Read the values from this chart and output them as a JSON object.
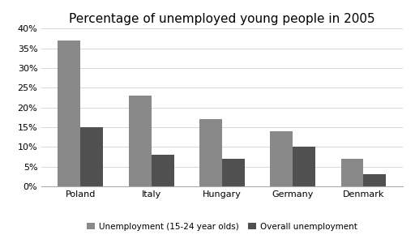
{
  "title": "Percentage of unemployed young people in 2005",
  "categories": [
    "Poland",
    "Italy",
    "Hungary",
    "Germany",
    "Denmark"
  ],
  "youth_unemployment": [
    37,
    23,
    17,
    14,
    7
  ],
  "overall_unemployment": [
    15,
    8,
    7,
    10,
    3
  ],
  "youth_color": "#898989",
  "overall_color": "#505050",
  "ylim": [
    0,
    40
  ],
  "yticks": [
    0,
    5,
    10,
    15,
    20,
    25,
    30,
    35,
    40
  ],
  "legend_labels": [
    "Unemployment (15-24 year olds)",
    "Overall unemployment"
  ],
  "bar_width": 0.32,
  "background_color": "#ffffff",
  "title_fontsize": 11,
  "tick_fontsize": 8,
  "legend_fontsize": 7.5
}
